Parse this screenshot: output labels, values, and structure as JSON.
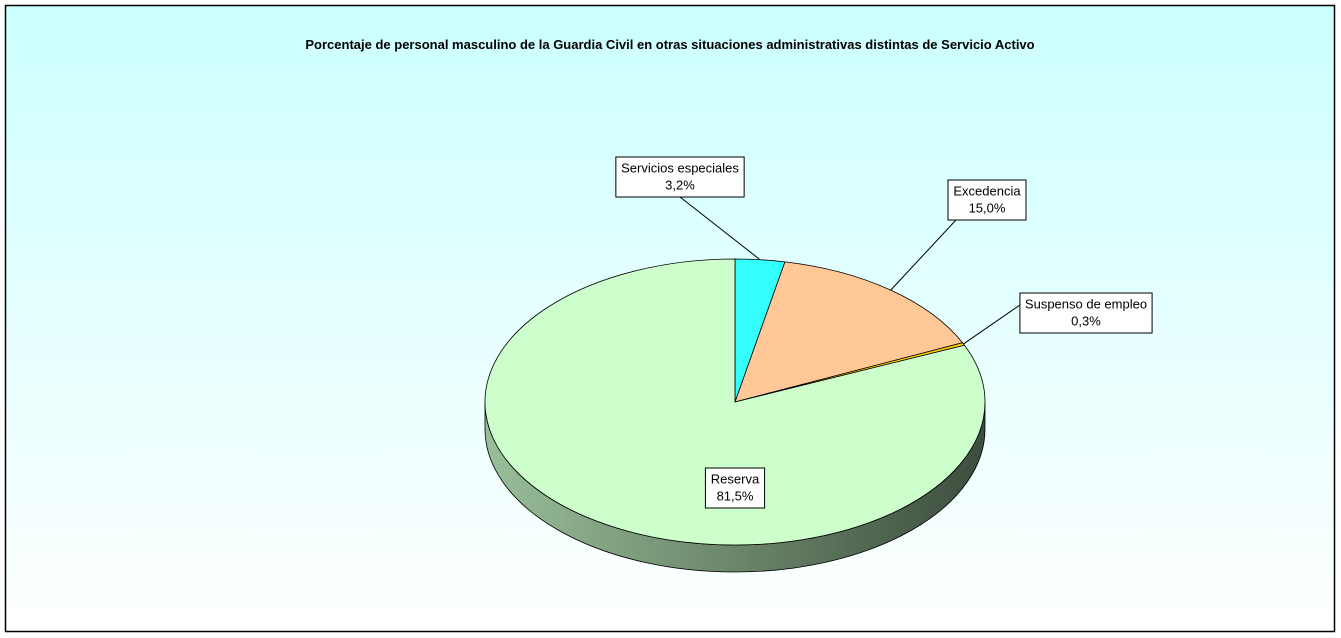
{
  "chart_data": {
    "type": "pie",
    "title": "Porcentaje de personal masculino de la Guardia Civil en otras situaciones administrativas distintas de Servicio Activo",
    "categories": [
      "Servicios especiales",
      "Excedencia",
      "Suspenso de empleo",
      "Reserva"
    ],
    "values": [
      3.2,
      15.0,
      0.3,
      81.5
    ],
    "value_labels": [
      "3,2%",
      "15,0%",
      "0,3%",
      "81,5%"
    ],
    "colors": [
      "#33ffff",
      "#ffc896",
      "#ffcc00",
      "#ccffcc"
    ]
  }
}
